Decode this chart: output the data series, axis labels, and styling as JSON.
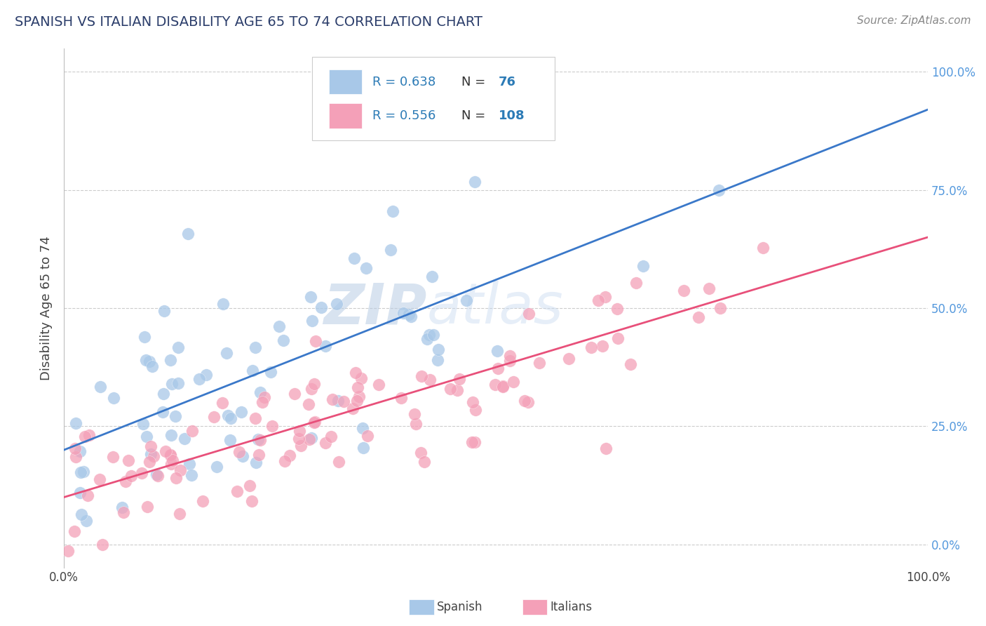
{
  "title": "SPANISH VS ITALIAN DISABILITY AGE 65 TO 74 CORRELATION CHART",
  "source": "Source: ZipAtlas.com",
  "ylabel": "Disability Age 65 to 74",
  "xlim": [
    0,
    1
  ],
  "ylim": [
    -0.05,
    1.05
  ],
  "spanish_R": 0.638,
  "spanish_N": 76,
  "italian_R": 0.556,
  "italian_N": 108,
  "spanish_color": "#a8c8e8",
  "italian_color": "#f4a0b8",
  "spanish_line_color": "#3a78c9",
  "italian_line_color": "#e8507a",
  "watermark_zip": "ZIP",
  "watermark_atlas": "atlas",
  "background_color": "#ffffff",
  "grid_color": "#cccccc",
  "title_color": "#2c3e6b",
  "legend_text_color": "#2c7bb6",
  "right_axis_color": "#5599dd"
}
